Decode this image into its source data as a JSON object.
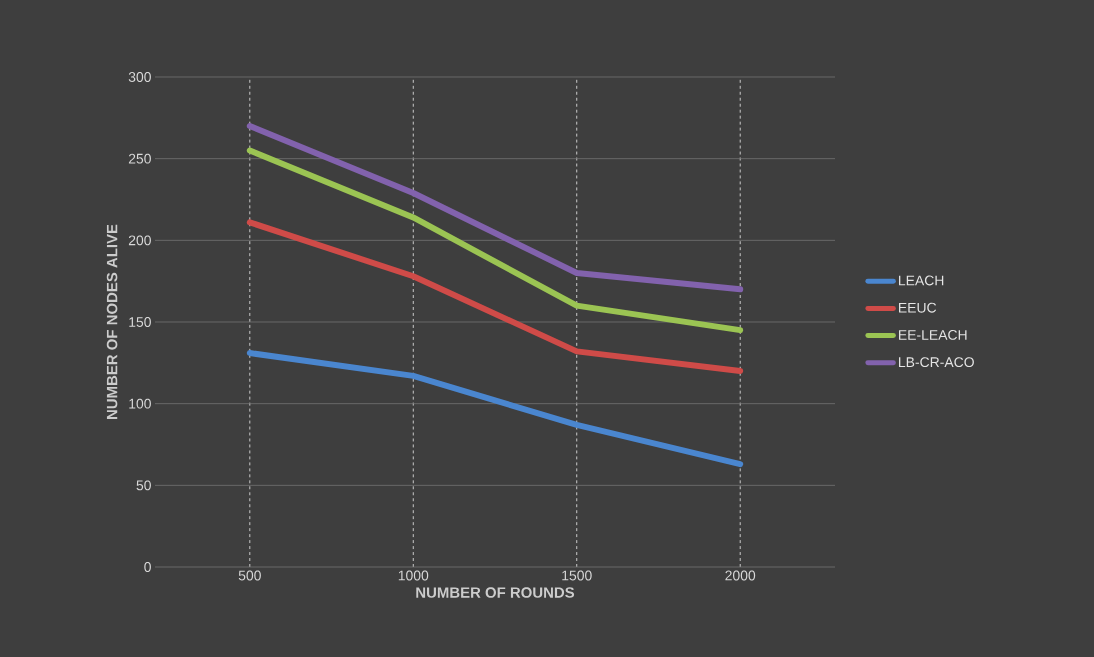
{
  "chart_data": {
    "type": "line",
    "xlabel": "NUMBER OF ROUNDS",
    "ylabel": "NUMBER OF NODES ALIVE",
    "categories": [
      "500",
      "1000",
      "1500",
      "2000"
    ],
    "series": [
      {
        "name": "LEACH",
        "color": "#4a86cf",
        "values": [
          131,
          117,
          87,
          63
        ]
      },
      {
        "name": "EEUC",
        "color": "#cf4b48",
        "values": [
          211,
          178,
          132,
          120
        ]
      },
      {
        "name": "EE-LEACH",
        "color": "#9bc453",
        "values": [
          255,
          214,
          160,
          145
        ]
      },
      {
        "name": "LB-CR-ACO",
        "color": "#8262ad",
        "values": [
          270,
          229,
          180,
          170
        ]
      }
    ],
    "ylim": [
      0,
      300
    ],
    "yticks": [
      0,
      50,
      100,
      150,
      200,
      250,
      300
    ],
    "grid": true,
    "legend": "right",
    "marker": "none",
    "line_style": "solid"
  }
}
